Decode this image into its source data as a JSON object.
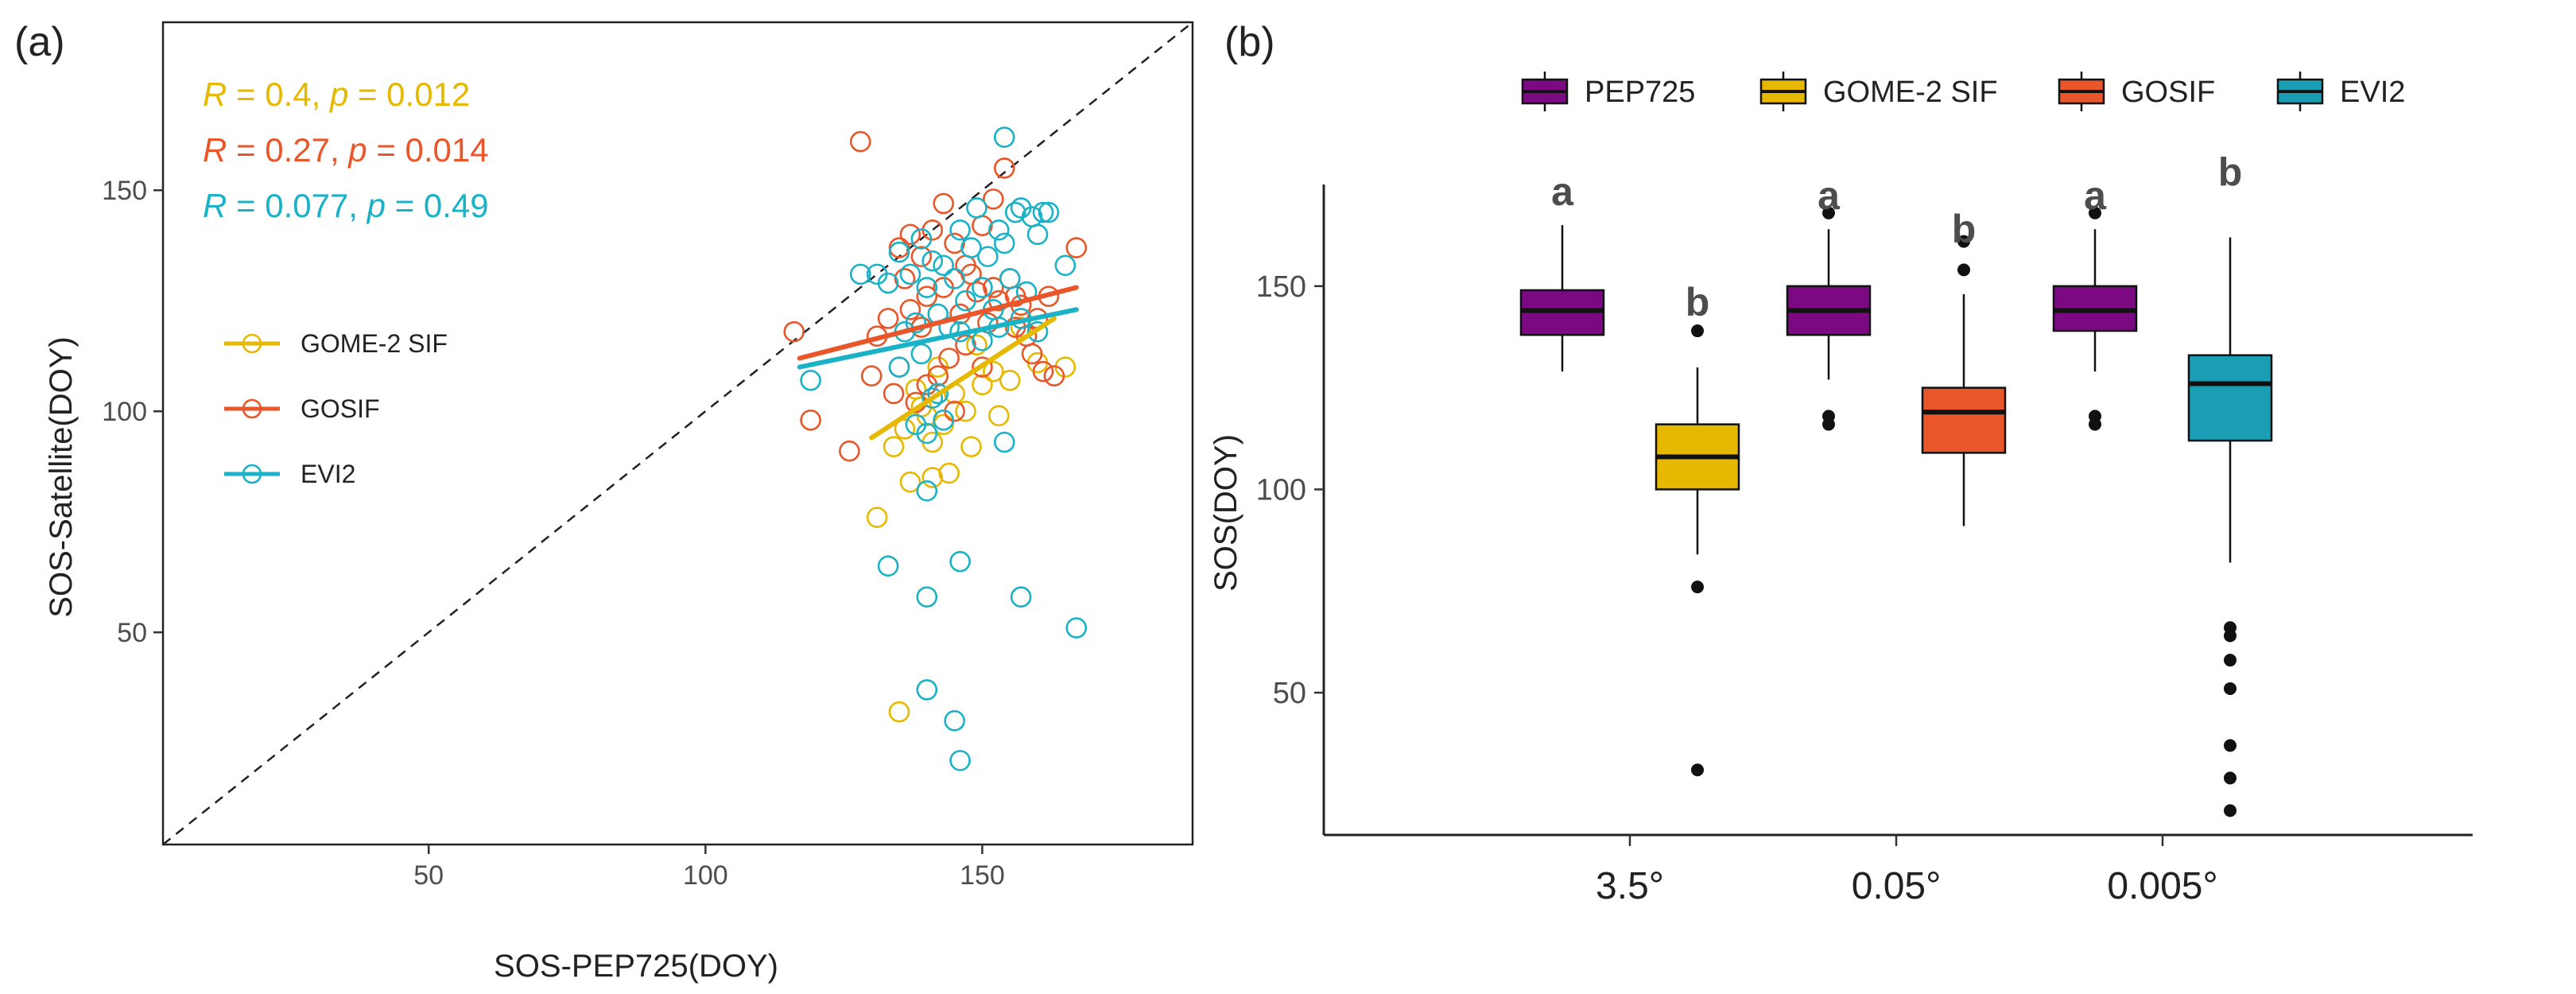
{
  "chart_data": [
    {
      "panel": "(a)",
      "type": "scatter",
      "xlabel": "SOS-PEP725(DOY)",
      "ylabel": "SOS-Satellite(DOY)",
      "xlim": [
        2,
        188
      ],
      "ylim": [
        2,
        188
      ],
      "xticks": [
        50,
        100,
        150
      ],
      "yticks": [
        50,
        100,
        150
      ],
      "reference_line": "1:1 dashed",
      "legend": [
        "GOME-2 SIF",
        "GOSIF",
        "EVI2"
      ],
      "colors": {
        "GOME-2 SIF": "#e7b800",
        "GOSIF": "#e8562a",
        "EVI2": "#1ab2c6"
      },
      "annotations": [
        {
          "series": "GOME-2 SIF",
          "r_label": "R",
          "r_value": "= 0.4,",
          "p_label": "p",
          "p_value": "= 0.012"
        },
        {
          "series": "GOSIF",
          "r_label": "R",
          "r_value": "= 0.27,",
          "p_label": "p",
          "p_value": "= 0.014"
        },
        {
          "series": "EVI2",
          "r_label": "R",
          "r_value": "= 0.077,",
          "p_label": "p",
          "p_value": "= 0.49"
        }
      ],
      "series": [
        {
          "name": "GOME-2 SIF",
          "fit": [
            [
              130,
              94
            ],
            [
              163,
              121
            ]
          ],
          "points": [
            [
              135,
              32
            ],
            [
              131,
              76
            ],
            [
              137,
              84
            ],
            [
              141,
              85
            ],
            [
              144,
              86
            ],
            [
              134,
              92
            ],
            [
              136,
              96
            ],
            [
              143,
              97
            ],
            [
              148,
              92
            ],
            [
              140,
              99
            ],
            [
              145,
              104
            ],
            [
              150,
              106
            ],
            [
              152,
              109
            ],
            [
              138,
              105
            ],
            [
              142,
              110
            ],
            [
              155,
              107
            ],
            [
              147,
              100
            ],
            [
              153,
              99
            ],
            [
              160,
              111
            ],
            [
              165,
              110
            ],
            [
              157,
              119
            ],
            [
              149,
              115
            ],
            [
              141,
              93
            ],
            [
              139,
              101
            ]
          ]
        },
        {
          "name": "GOSIF",
          "fit": [
            [
              117,
              112
            ],
            [
              167,
              128
            ]
          ],
          "points": [
            [
              128,
              161
            ],
            [
              119,
              98
            ],
            [
              116,
              118
            ],
            [
              126,
              91
            ],
            [
              130,
              108
            ],
            [
              133,
              121
            ],
            [
              135,
              110
            ],
            [
              135,
              137
            ],
            [
              137,
              123
            ],
            [
              138,
              102
            ],
            [
              139,
              135
            ],
            [
              140,
              126
            ],
            [
              141,
              141
            ],
            [
              142,
              108
            ],
            [
              143,
              147
            ],
            [
              144,
              112
            ],
            [
              145,
              138
            ],
            [
              146,
              122
            ],
            [
              147,
              115
            ],
            [
              148,
              131
            ],
            [
              149,
              127
            ],
            [
              150,
              142
            ],
            [
              151,
              120
            ],
            [
              152,
              148
            ],
            [
              153,
              125
            ],
            [
              154,
              155
            ],
            [
              155,
              130
            ],
            [
              156,
              119
            ],
            [
              157,
              124
            ],
            [
              158,
              117
            ],
            [
              159,
              113
            ],
            [
              160,
              121
            ],
            [
              161,
              109
            ],
            [
              163,
              108
            ],
            [
              167,
              137
            ],
            [
              131,
              117
            ],
            [
              134,
              104
            ],
            [
              136,
              130
            ],
            [
              137,
              140
            ],
            [
              139,
              119
            ],
            [
              140,
              106
            ],
            [
              143,
              128
            ],
            [
              145,
              100
            ],
            [
              147,
              133
            ],
            [
              150,
              110
            ],
            [
              152,
              128
            ],
            [
              156,
              126
            ],
            [
              162,
              126
            ]
          ]
        },
        {
          "name": "EVI2",
          "fit": [
            [
              117,
              110
            ],
            [
              167,
              123
            ]
          ],
          "points": [
            [
              154,
              162
            ],
            [
              146,
              21
            ],
            [
              145,
              30
            ],
            [
              140,
              37
            ],
            [
              133,
              65
            ],
            [
              140,
              58
            ],
            [
              146,
              66
            ],
            [
              157,
              58
            ],
            [
              167,
              51
            ],
            [
              140,
              82
            ],
            [
              143,
              98
            ],
            [
              140,
              95
            ],
            [
              154,
              93
            ],
            [
              119,
              107
            ],
            [
              128,
              131
            ],
            [
              131,
              131
            ],
            [
              133,
              129
            ],
            [
              135,
              136
            ],
            [
              137,
              131
            ],
            [
              138,
              120
            ],
            [
              139,
              139
            ],
            [
              140,
              128
            ],
            [
              141,
              134
            ],
            [
              142,
              122
            ],
            [
              143,
              133
            ],
            [
              144,
              119
            ],
            [
              145,
              130
            ],
            [
              146,
              141
            ],
            [
              147,
              125
            ],
            [
              148,
              137
            ],
            [
              149,
              146
            ],
            [
              150,
              128
            ],
            [
              151,
              135
            ],
            [
              152,
              123
            ],
            [
              153,
              141
            ],
            [
              154,
              138
            ],
            [
              155,
              130
            ],
            [
              156,
              145
            ],
            [
              157,
              146
            ],
            [
              158,
              127
            ],
            [
              159,
              144
            ],
            [
              160,
              140
            ],
            [
              161,
              145
            ],
            [
              162,
              145
            ],
            [
              165,
              133
            ],
            [
              136,
              118
            ],
            [
              139,
              113
            ],
            [
              142,
              104
            ],
            [
              146,
              118
            ],
            [
              150,
              116
            ],
            [
              153,
              119
            ],
            [
              157,
              121
            ],
            [
              160,
              118
            ],
            [
              135,
              110
            ],
            [
              138,
              97
            ],
            [
              141,
              103
            ]
          ]
        }
      ]
    },
    {
      "panel": "(b)",
      "type": "box",
      "ylabel": "SOS(DOY)",
      "ylim": [
        15,
        175
      ],
      "yticks": [
        50,
        100,
        150
      ],
      "categories": [
        "3.5°",
        "0.05°",
        "0.005°"
      ],
      "legend": [
        "PEP725",
        "GOME-2 SIF",
        "GOSIF",
        "EVI2"
      ],
      "colors": {
        "PEP725": "#7b0a82",
        "GOME-2 SIF": "#e7b800",
        "GOSIF": "#e8562a",
        "EVI2": "#1a9eb3"
      },
      "boxes": [
        {
          "category": "3.5°",
          "series": "PEP725",
          "whisker_low": 129,
          "q1": 138,
          "median": 144,
          "q3": 149,
          "whisker_high": 165,
          "outliers": [],
          "letter": "a"
        },
        {
          "category": "3.5°",
          "series": "GOME-2 SIF",
          "whisker_low": 84,
          "q1": 100,
          "median": 108,
          "q3": 116,
          "whisker_high": 130,
          "outliers": [
            139,
            76,
            31
          ],
          "letter": "b"
        },
        {
          "category": "0.05°",
          "series": "PEP725",
          "whisker_low": 127,
          "q1": 138,
          "median": 144,
          "q3": 150,
          "whisker_high": 164,
          "outliers": [
            168,
            118,
            116
          ],
          "letter": "a"
        },
        {
          "category": "0.05°",
          "series": "GOSIF",
          "whisker_low": 91,
          "q1": 109,
          "median": 119,
          "q3": 125,
          "whisker_high": 148,
          "outliers": [
            161,
            154
          ],
          "letter": "b"
        },
        {
          "category": "0.005°",
          "series": "PEP725",
          "whisker_low": 129,
          "q1": 139,
          "median": 144,
          "q3": 150,
          "whisker_high": 164,
          "outliers": [
            168,
            118,
            116
          ],
          "letter": "a"
        },
        {
          "category": "0.005°",
          "series": "EVI2",
          "whisker_low": 82,
          "q1": 112,
          "median": 126,
          "q3": 133,
          "whisker_high": 162,
          "outliers": [
            66,
            64,
            58,
            51,
            37,
            29,
            21
          ],
          "letter": "b"
        }
      ]
    }
  ]
}
